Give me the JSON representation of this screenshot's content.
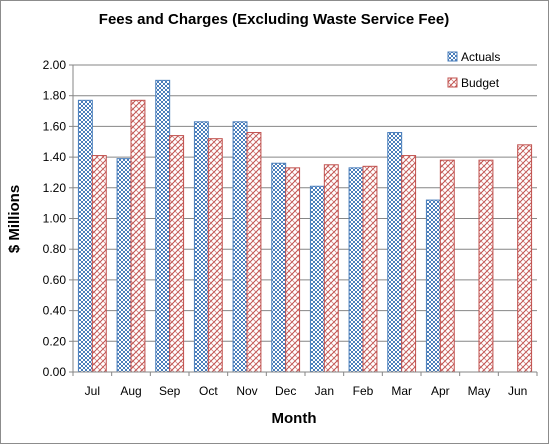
{
  "chart_data": {
    "type": "bar",
    "title": "Fees and Charges (Excluding  Waste Service Fee)",
    "xlabel": "Month",
    "ylabel": "$ Millions",
    "ylim": [
      0,
      2.0
    ],
    "ytick_step": 0.2,
    "y_tick_labels": [
      "0.00",
      "0.20",
      "0.40",
      "0.60",
      "0.80",
      "1.00",
      "1.20",
      "1.40",
      "1.60",
      "1.80",
      "2.00"
    ],
    "grid": true,
    "legend_position": "top-right",
    "categories": [
      "Jul",
      "Aug",
      "Sep",
      "Oct",
      "Nov",
      "Dec",
      "Jan",
      "Feb",
      "Mar",
      "Apr",
      "May",
      "Jun"
    ],
    "series": [
      {
        "name": "Actuals",
        "pattern": "checkerboard",
        "color": "#4a7ebb",
        "values": [
          1.77,
          1.39,
          1.9,
          1.63,
          1.63,
          1.36,
          1.21,
          1.33,
          1.56,
          1.12,
          null,
          null
        ]
      },
      {
        "name": "Budget",
        "pattern": "trellis",
        "color": "#c0504d",
        "values": [
          1.41,
          1.77,
          1.54,
          1.52,
          1.56,
          1.33,
          1.35,
          1.34,
          1.41,
          1.38,
          1.38,
          1.48
        ]
      }
    ]
  }
}
